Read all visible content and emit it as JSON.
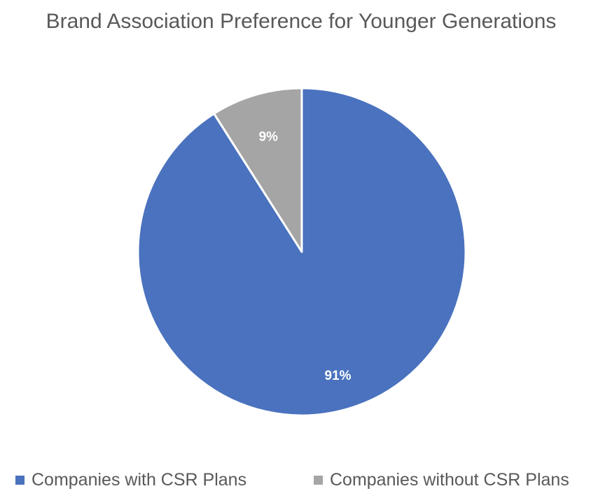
{
  "chart_data": {
    "type": "pie",
    "title": "Brand Association Preference for Younger Generations",
    "categories": [
      "Companies with CSR Plans",
      "Companies without CSR Plans"
    ],
    "values": [
      91,
      9
    ],
    "data_labels": [
      "91%",
      "9%"
    ],
    "colors": [
      "#4a72be",
      "#a5a5a5"
    ],
    "start_angle_deg": 0,
    "direction": "clockwise",
    "legend_position": "bottom"
  }
}
